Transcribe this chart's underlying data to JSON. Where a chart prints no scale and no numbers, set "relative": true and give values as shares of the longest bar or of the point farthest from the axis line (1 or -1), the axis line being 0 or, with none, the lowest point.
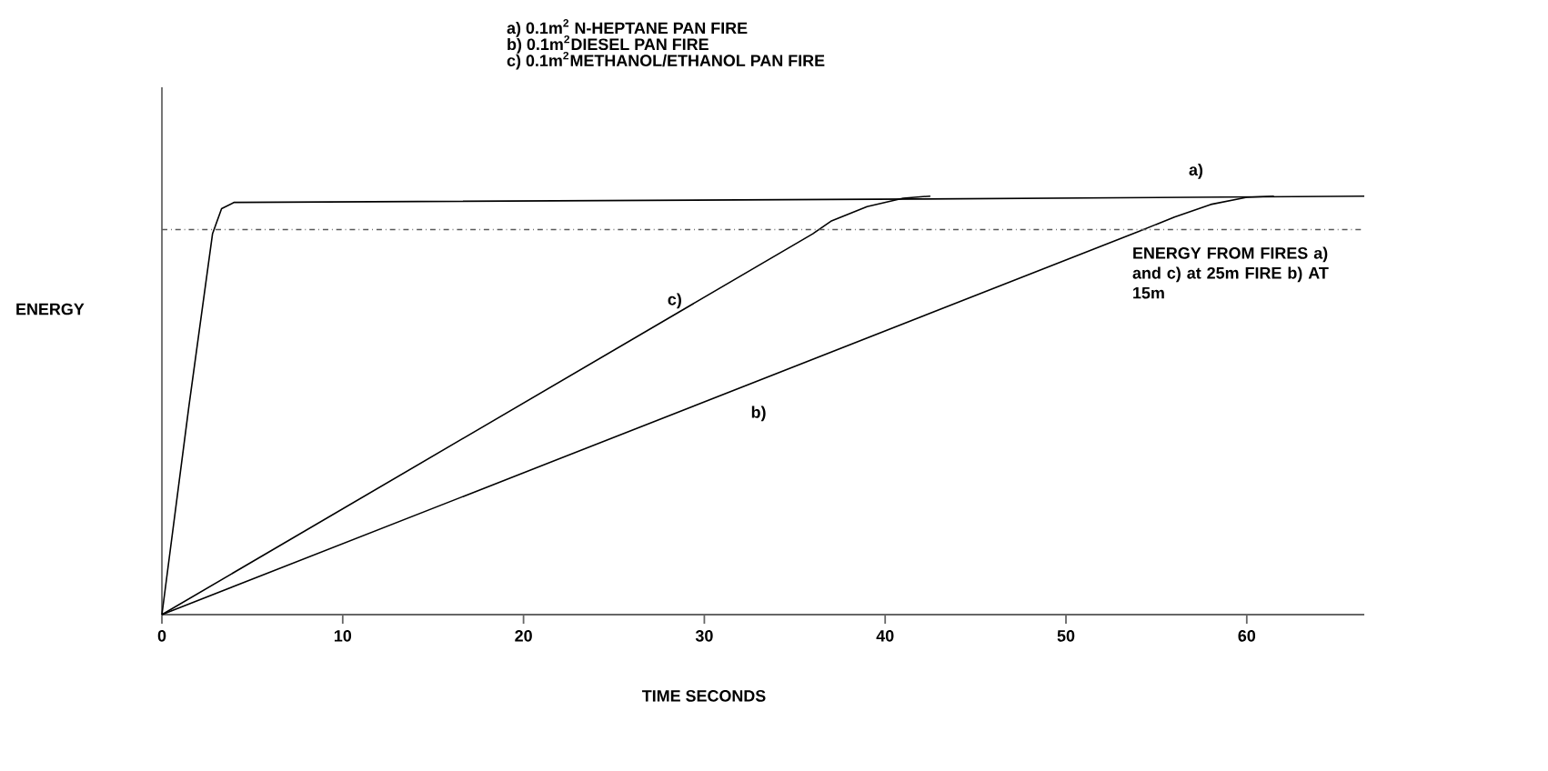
{
  "chart_data": {
    "type": "line",
    "relative": true,
    "xlabel": "TIME SECONDS",
    "ylabel": "ENERGY",
    "xlim": [
      0,
      66.5
    ],
    "xticks": [
      0,
      10,
      20,
      30,
      40,
      50,
      60
    ],
    "series": [
      {
        "name": "a)",
        "color": "#000000",
        "x": [
          0,
          1.5,
          2.8,
          3.3,
          4,
          42,
          66.5
        ],
        "values": [
          0,
          0.5,
          0.91,
          0.97,
          0.985,
          0.993,
          1.0
        ]
      },
      {
        "name": "b)",
        "color": "#000000",
        "x": [
          0,
          54,
          56,
          58,
          60,
          61.5
        ],
        "values": [
          0,
          0.915,
          0.95,
          0.98,
          0.997,
          1.0
        ]
      },
      {
        "name": "c)",
        "color": "#000000",
        "x": [
          0,
          36,
          37,
          39,
          41,
          42.5
        ],
        "values": [
          0,
          0.91,
          0.94,
          0.975,
          0.995,
          1.0
        ]
      }
    ],
    "ref_lines": [
      {
        "axis": "y",
        "value": 0.92,
        "line_style": "dashdot",
        "label": "ENERGY FROM FIRES a) and c) at 25m FIRE b) AT 15m"
      }
    ],
    "annotations": [
      "a)  0.1m$^{2}$ N-HEPTANE PAN FIRE",
      "b)  0.1m$^{2}$DIESEL PAN FIRE",
      "c)  0.1m$^{2}$METHANOL/ETHANOL PAN FIRE"
    ],
    "line_style": "solid",
    "marker": "none",
    "grid": false
  }
}
